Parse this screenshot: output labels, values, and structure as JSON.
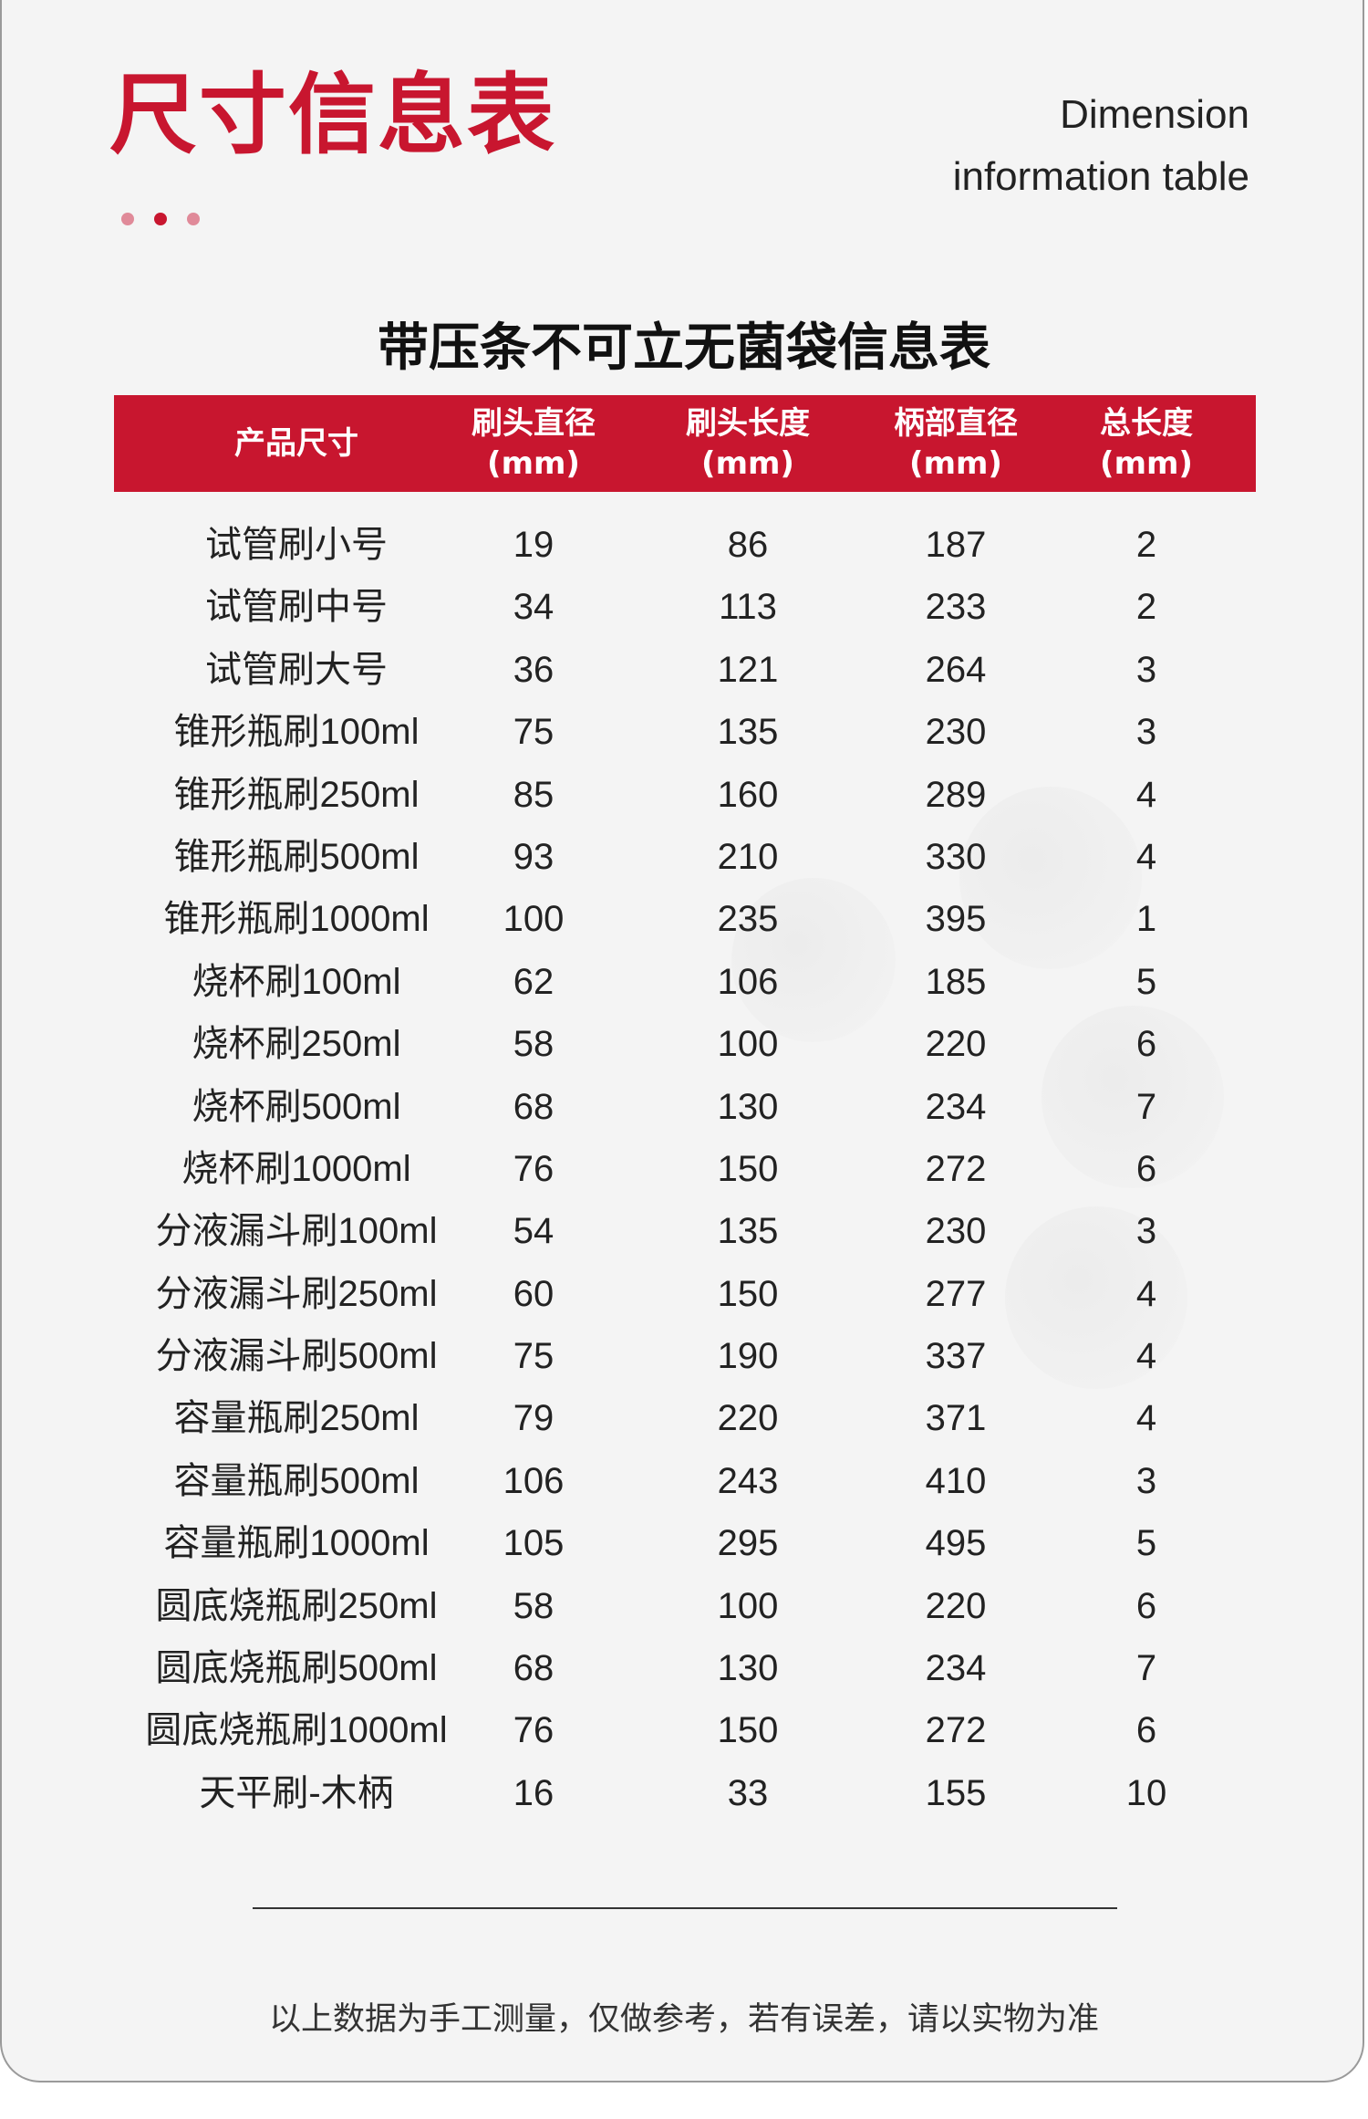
{
  "header": {
    "title": "尺寸信息表",
    "title_en_line1": "Dimension",
    "title_en_line2": "information table",
    "accent_color": "#c8162f"
  },
  "table": {
    "title": "带压条不可立无菌袋信息表",
    "columns": [
      {
        "label": "产品尺寸",
        "unit": ""
      },
      {
        "label": "刷头直径",
        "unit": "(mm)"
      },
      {
        "label": "刷头长度",
        "unit": "(mm)"
      },
      {
        "label": "柄部直径",
        "unit": "(mm)"
      },
      {
        "label": "总长度",
        "unit": "(mm)"
      }
    ],
    "rows": [
      [
        "试管刷小号",
        "19",
        "86",
        "187",
        "2"
      ],
      [
        "试管刷中号",
        "34",
        "113",
        "233",
        "2"
      ],
      [
        "试管刷大号",
        "36",
        "121",
        "264",
        "3"
      ],
      [
        "锥形瓶刷100ml",
        "75",
        "135",
        "230",
        "3"
      ],
      [
        "锥形瓶刷250ml",
        "85",
        "160",
        "289",
        "4"
      ],
      [
        "锥形瓶刷500ml",
        "93",
        "210",
        "330",
        "4"
      ],
      [
        "锥形瓶刷1000ml",
        "100",
        "235",
        "395",
        "1"
      ],
      [
        "烧杯刷100ml",
        "62",
        "106",
        "185",
        "5"
      ],
      [
        "烧杯刷250ml",
        "58",
        "100",
        "220",
        "6"
      ],
      [
        "烧杯刷500ml",
        "68",
        "130",
        "234",
        "7"
      ],
      [
        "烧杯刷1000ml",
        "76",
        "150",
        "272",
        "6"
      ],
      [
        "分液漏斗刷100ml",
        "54",
        "135",
        "230",
        "3"
      ],
      [
        "分液漏斗刷250ml",
        "60",
        "150",
        "277",
        "4"
      ],
      [
        "分液漏斗刷500ml",
        "75",
        "190",
        "337",
        "4"
      ],
      [
        "容量瓶刷250ml",
        "79",
        "220",
        "371",
        "4"
      ],
      [
        "容量瓶刷500ml",
        "106",
        "243",
        "410",
        "3"
      ],
      [
        "容量瓶刷1000ml",
        "105",
        "295",
        "495",
        "5"
      ],
      [
        "圆底烧瓶刷250ml",
        "58",
        "100",
        "220",
        "6"
      ],
      [
        "圆底烧瓶刷500ml",
        "68",
        "130",
        "234",
        "7"
      ],
      [
        "圆底烧瓶刷1000ml",
        "76",
        "150",
        "272",
        "6"
      ],
      [
        "天平刷-木柄",
        "16",
        "33",
        "155",
        "10"
      ]
    ]
  },
  "footer": {
    "note": "以上数据为手工测量，仅做参考，若有误差，请以实物为准"
  }
}
